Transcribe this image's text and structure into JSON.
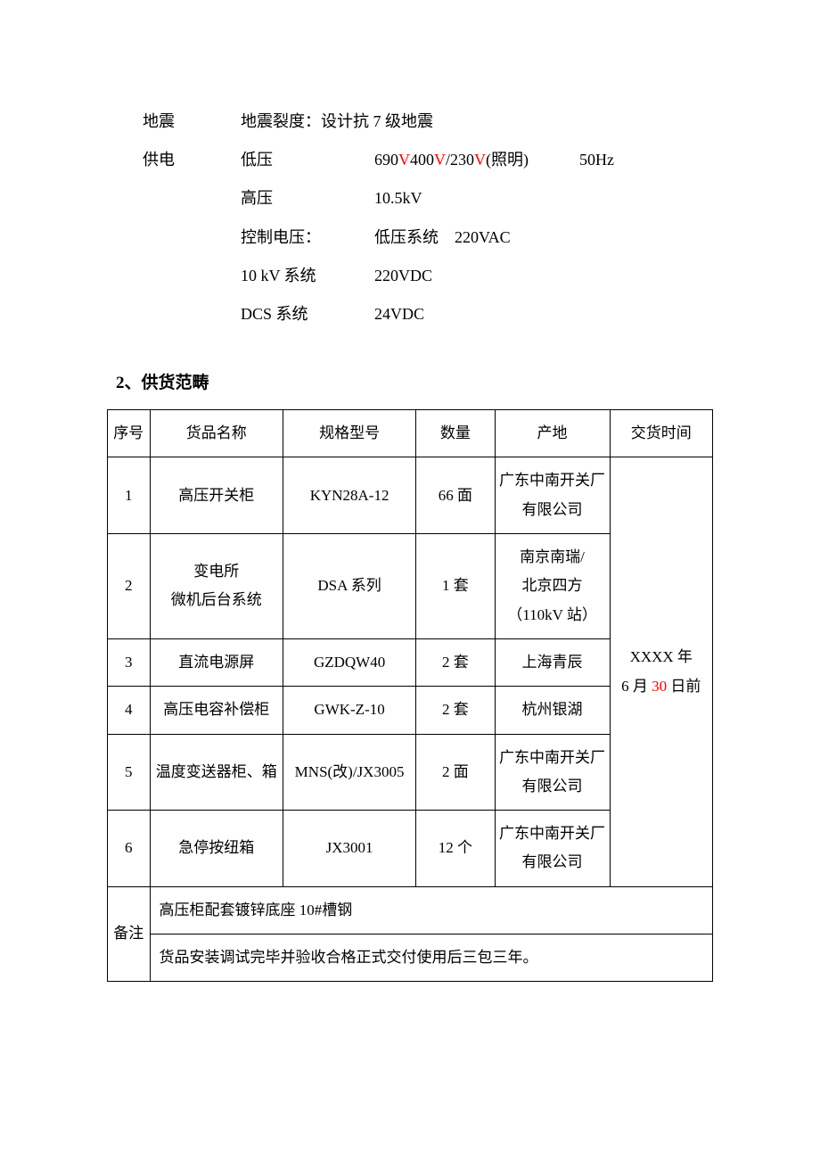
{
  "specs": {
    "earthquake": {
      "label": "地震",
      "text": "地震裂度：设计抗 7 级地震"
    },
    "power": {
      "label": "供电",
      "rows": [
        {
          "sub": "低压",
          "val_pre": "690",
          "v1": "V",
          "mid1": "400",
          "v2": "V",
          "mid2": "/230",
          "v3": "V",
          "val_post": "(照明)",
          "ext": "50Hz"
        },
        {
          "sub": "高压",
          "val": "10.5kV"
        },
        {
          "sub": "控制电压：",
          "val": "低压系统",
          "ext": "220VAC"
        },
        {
          "sub": "10 kV 系统",
          "val": "220VDC"
        },
        {
          "sub": "DCS 系统",
          "val": "24VDC"
        }
      ]
    }
  },
  "section_heading": "2、供货范畴",
  "table": {
    "headers": {
      "idx": "序号",
      "name": "货品名称",
      "model": "规格型号",
      "qty": "数量",
      "origin": "产地",
      "delivery": "交货时间"
    },
    "rows": [
      {
        "idx": "1",
        "name": "高压开关柜",
        "model": "KYN28A-12",
        "qty": "66 面",
        "origin": "广东中南开关厂有限公司"
      },
      {
        "idx": "2",
        "name": "变电所\n微机后台系统",
        "model": "DSA 系列",
        "qty": "1 套",
        "origin": "南京南瑞/\n北京四方\n（110kV 站）"
      },
      {
        "idx": "3",
        "name": "直流电源屏",
        "model": "GZDQW40",
        "qty": "2 套",
        "origin": "上海青辰"
      },
      {
        "idx": "4",
        "name": "高压电容补偿柜",
        "model": "GWK-Z-10",
        "qty": "2 套",
        "origin": "杭州银湖"
      },
      {
        "idx": "5",
        "name": "温度变送器柜、箱",
        "model": "MNS(改)/JX3005",
        "qty": "2 面",
        "origin": "广东中南开关厂有限公司"
      },
      {
        "idx": "6",
        "name": "急停按纽箱",
        "model": "JX3001",
        "qty": "12 个",
        "origin": "广东中南开关厂有限公司"
      }
    ],
    "delivery": {
      "pre": "XXXX 年\n6 月 ",
      "red": "30",
      "post": " 日前"
    },
    "note": {
      "label": "备注",
      "line1": "高压柜配套镀锌底座 10#槽钢",
      "line2": "货品安装调试完毕并验收合格正式交付使用后三包三年。"
    }
  },
  "colors": {
    "text": "#000000",
    "accent": "#ff0000",
    "border": "#000000",
    "bg": "#ffffff"
  }
}
